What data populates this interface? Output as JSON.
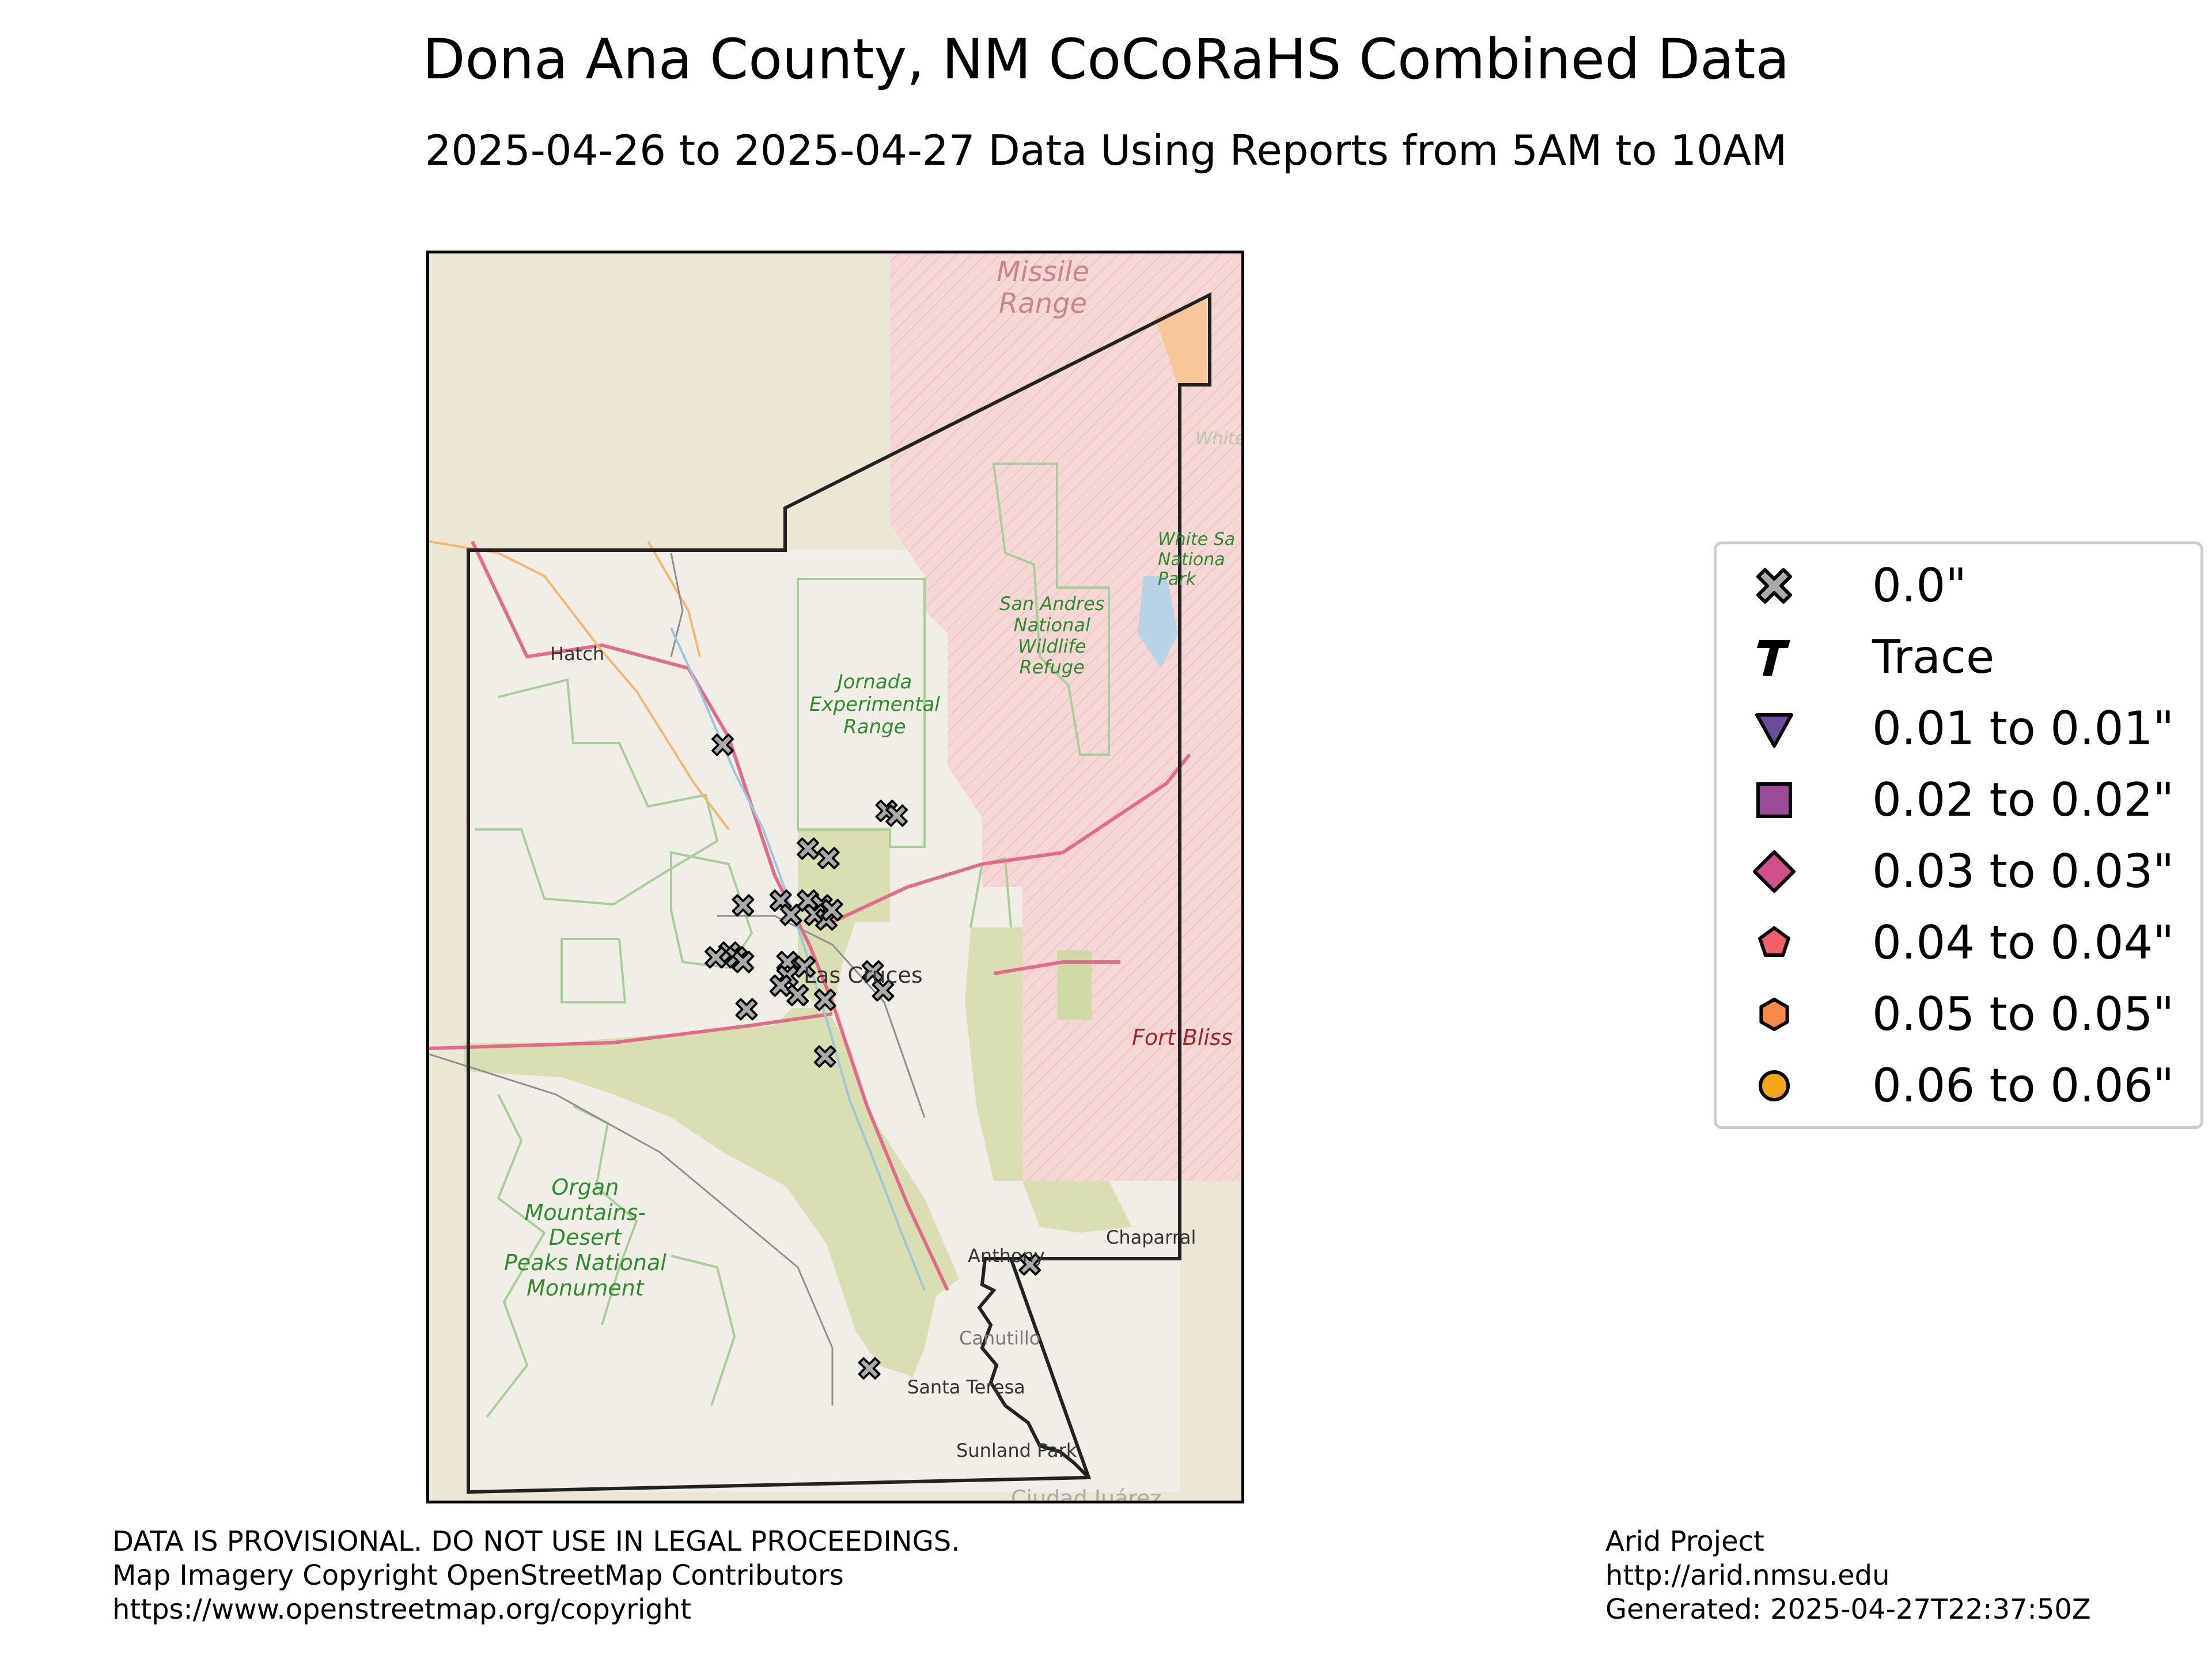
{
  "title": "Dona Ana County, NM CoCoRaHS Combined Data",
  "subtitle": "2025-04-26 to 2025-04-27 Data Using Reports from 5AM to 10AM",
  "map": {
    "labels": {
      "missile_range": "Missile\nRange",
      "hatch": "Hatch",
      "jornada": "Jornada\nExperimental\nRange",
      "san_andres": "San Andres\nNational\nWildlife\nRefuge",
      "white_sands": "White Sa\nNationa\nPark",
      "white_top": "White",
      "las_cruces": "Las Cruces",
      "fort_bliss": "Fort Bliss",
      "organ_mountains": "Organ\nMountains-\nDesert\nPeaks National\nMonument",
      "anthony": "Anthony",
      "chaparral": "Chaparral",
      "canutillo": "Canutillo",
      "santa_teresa": "Santa Teresa",
      "sunland_park": "Sunland Park",
      "ciudad_juarez": "Ciudad Juárez"
    },
    "colors": {
      "background": "#f0ece4",
      "park_green": "#d8dfb0",
      "military_pink": "#f5d5d5",
      "boundary_green": "#a8cf98",
      "highway": "#e06c8a",
      "road_orange": "#f2b870",
      "county_outline": "#222222",
      "marker_gray": "#aaaaaa"
    },
    "stations": [
      {
        "lon": -106.88,
        "lat": 32.55,
        "value": "0.0\""
      },
      {
        "lon": -106.64,
        "lat": 32.48,
        "value": "0.0\""
      },
      {
        "lon": -106.625,
        "lat": 32.475,
        "value": "0.0\""
      },
      {
        "lon": -106.755,
        "lat": 32.44,
        "value": "0.0\""
      },
      {
        "lon": -106.725,
        "lat": 32.43,
        "value": "0.0\""
      },
      {
        "lon": -106.85,
        "lat": 32.38,
        "value": "0.0\""
      },
      {
        "lon": -106.795,
        "lat": 32.385,
        "value": "0.0\""
      },
      {
        "lon": -106.78,
        "lat": 32.37,
        "value": "0.0\""
      },
      {
        "lon": -106.755,
        "lat": 32.385,
        "value": "0.0\""
      },
      {
        "lon": -106.735,
        "lat": 32.38,
        "value": "0.0\""
      },
      {
        "lon": -106.745,
        "lat": 32.37,
        "value": "0.0\""
      },
      {
        "lon": -106.728,
        "lat": 32.365,
        "value": "0.0\""
      },
      {
        "lon": -106.72,
        "lat": 32.375,
        "value": "0.0\""
      },
      {
        "lon": -106.87,
        "lat": 32.33,
        "value": "0.0\""
      },
      {
        "lon": -106.89,
        "lat": 32.325,
        "value": "0.0\""
      },
      {
        "lon": -106.86,
        "lat": 32.325,
        "value": "0.0\""
      },
      {
        "lon": -106.85,
        "lat": 32.32,
        "value": "0.0\""
      },
      {
        "lon": -106.785,
        "lat": 32.32,
        "value": "0.0\""
      },
      {
        "lon": -106.76,
        "lat": 32.315,
        "value": "0.0\""
      },
      {
        "lon": -106.785,
        "lat": 32.305,
        "value": "0.0\""
      },
      {
        "lon": -106.795,
        "lat": 32.295,
        "value": "0.0\""
      },
      {
        "lon": -106.77,
        "lat": 32.285,
        "value": "0.0\""
      },
      {
        "lon": -106.73,
        "lat": 32.28,
        "value": "0.0\""
      },
      {
        "lon": -106.845,
        "lat": 32.27,
        "value": "0.0\""
      },
      {
        "lon": -106.66,
        "lat": 32.31,
        "value": "0.0\""
      },
      {
        "lon": -106.645,
        "lat": 32.29,
        "value": "0.0\""
      },
      {
        "lon": -106.73,
        "lat": 32.22,
        "value": "0.0\""
      },
      {
        "lon": -106.43,
        "lat": 32.0,
        "value": "0.0\""
      },
      {
        "lon": -106.665,
        "lat": 31.89,
        "value": "0.0\""
      }
    ]
  },
  "legend": {
    "items": [
      {
        "label": "0.0\"",
        "symbol": "x-marker",
        "color": "#aaaaaa"
      },
      {
        "label": "Trace",
        "symbol": "t-marker",
        "color": "#000000"
      },
      {
        "label": "0.01 to 0.01\"",
        "symbol": "triangle-down-marker",
        "color": "#6b4c9a"
      },
      {
        "label": "0.02 to 0.02\"",
        "symbol": "square-marker",
        "color": "#9c4a9a"
      },
      {
        "label": "0.03 to 0.03\"",
        "symbol": "diamond-marker",
        "color": "#d0508a"
      },
      {
        "label": "0.04 to 0.04\"",
        "symbol": "pentagon-marker",
        "color": "#f0606a"
      },
      {
        "label": "0.05 to 0.05\"",
        "symbol": "hexagon-marker",
        "color": "#f58a4a"
      },
      {
        "label": "0.06 to 0.06\"",
        "symbol": "circle-marker",
        "color": "#f5a61a"
      }
    ]
  },
  "footer": {
    "left": "DATA IS PROVISIONAL. DO NOT USE IN LEGAL PROCEEDINGS.\nMap Imagery Copyright OpenStreetMap Contributors\nhttps://www.openstreetmap.org/copyright",
    "right": "Arid Project\nhttp://arid.nmsu.edu\nGenerated: 2025-04-27T22:37:50Z"
  }
}
